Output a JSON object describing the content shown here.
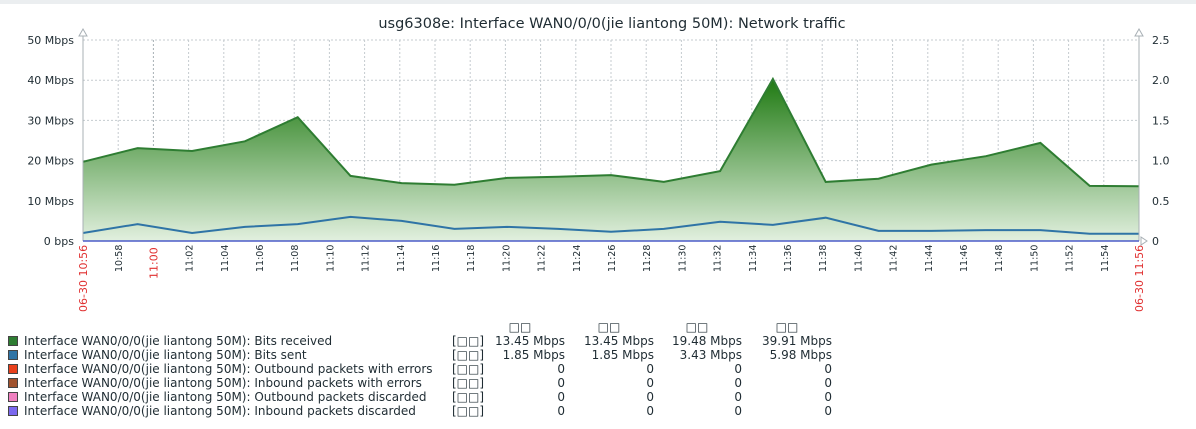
{
  "chart_data": {
    "type": "area",
    "title": "usg6308e: Interface WAN0/0/0(jie liantong 50M): Network traffic",
    "x_unit": "minutes since 06-30 10:56",
    "xlim": [
      0,
      60
    ],
    "x_start_label": "06-30 10:56",
    "x_end_label": "06-30 11:56",
    "x_tick_labels": [
      "10:58",
      "11:00",
      "11:02",
      "11:04",
      "11:06",
      "11:08",
      "11:10",
      "11:12",
      "11:14",
      "11:16",
      "11:18",
      "11:20",
      "11:22",
      "11:24",
      "11:26",
      "11:28",
      "11:30",
      "11:32",
      "11:34",
      "11:36",
      "11:38",
      "11:40",
      "11:42",
      "11:44",
      "11:46",
      "11:48",
      "11:50",
      "11:52",
      "11:54"
    ],
    "ylim": [
      0,
      50
    ],
    "y_tick_labels": [
      "0 bps",
      "10 Mbps",
      "20 Mbps",
      "30 Mbps",
      "40 Mbps",
      "50 Mbps"
    ],
    "y2lim": [
      0,
      2.5
    ],
    "y2_tick_labels": [
      "0",
      "0.5",
      "1.0",
      "1.5",
      "2.0",
      "2.5"
    ],
    "x": [
      0,
      3.1,
      6.2,
      9.2,
      12.2,
      15.2,
      18.1,
      21.1,
      24.1,
      27,
      30,
      33,
      36.2,
      39.2,
      42.2,
      45.2,
      48.2,
      51.3,
      54.4,
      57.2,
      60
    ],
    "series": [
      {
        "name": "Bits received",
        "color": "#2e7d32",
        "values": [
          19.7,
          23.1,
          22.4,
          24.8,
          30.8,
          16.2,
          14.4,
          14.0,
          15.7,
          16.0,
          16.4,
          14.7,
          17.4,
          40.3,
          14.7,
          15.5,
          19.0,
          21.1,
          24.4,
          13.7,
          13.6
        ]
      },
      {
        "name": "Bits sent",
        "color": "#2f74a6",
        "values": [
          2.0,
          4.2,
          2.0,
          3.5,
          4.2,
          6.0,
          5.0,
          3.0,
          3.5,
          3.0,
          2.3,
          3.0,
          4.8,
          4.0,
          5.8,
          2.5,
          2.5,
          2.7,
          2.7,
          1.8,
          1.8
        ]
      }
    ]
  },
  "legend": {
    "headers": [
      "□□",
      "□□",
      "□□",
      "□□"
    ],
    "rows": [
      {
        "name": "Interface WAN0/0/0(jie liantong 50M): Bits received",
        "func": "[□□]",
        "color": "#2e7d32",
        "values": [
          "13.45 Mbps",
          "13.45 Mbps",
          "19.48 Mbps",
          "39.91 Mbps"
        ]
      },
      {
        "name": "Interface WAN0/0/0(jie liantong 50M): Bits sent",
        "func": "[□□]",
        "color": "#2f74a6",
        "values": [
          "1.85 Mbps",
          "1.85 Mbps",
          "3.43 Mbps",
          "5.98 Mbps"
        ]
      },
      {
        "name": "Interface WAN0/0/0(jie liantong 50M): Outbound packets with errors",
        "func": "[□□]",
        "color": "#e8401c",
        "values": [
          "0",
          "0",
          "0",
          "0"
        ]
      },
      {
        "name": "Interface WAN0/0/0(jie liantong 50M): Inbound packets with errors",
        "func": "[□□]",
        "color": "#a0522d",
        "values": [
          "0",
          "0",
          "0",
          "0"
        ]
      },
      {
        "name": "Interface WAN0/0/0(jie liantong 50M): Outbound packets discarded",
        "func": "[□□]",
        "color": "#f080c0",
        "values": [
          "0",
          "0",
          "0",
          "0"
        ]
      },
      {
        "name": "Interface WAN0/0/0(jie liantong 50M): Inbound packets discarded",
        "func": "[□□]",
        "color": "#7b68ee",
        "values": [
          "0",
          "0",
          "0",
          "0"
        ]
      }
    ]
  }
}
